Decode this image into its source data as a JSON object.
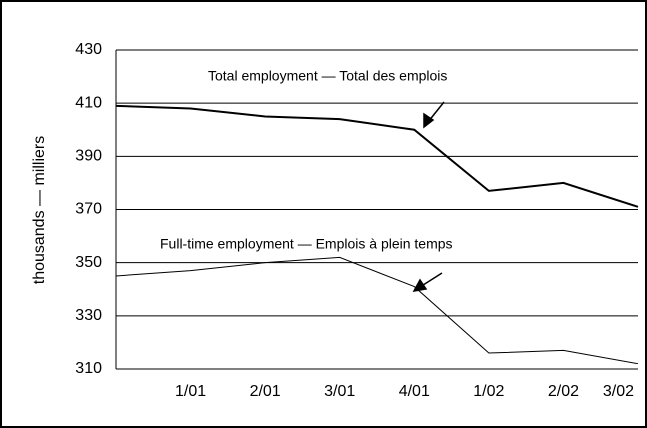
{
  "chart_data": {
    "type": "line",
    "ylabel": "thousands — milliers",
    "categories": [
      null,
      "1/01",
      "2/01",
      "3/01",
      "4/01",
      "1/02",
      "2/02",
      "3/02"
    ],
    "series": [
      {
        "name": "Total employment — Total des emplois",
        "color": "#000000",
        "width": 2,
        "values": [
          409,
          408,
          405,
          404,
          400,
          377,
          380,
          371
        ]
      },
      {
        "name": "Full-time employment — Emplois à plein temps",
        "color": "#000000",
        "width": 1,
        "values": [
          345,
          347,
          350,
          352,
          341,
          316,
          317,
          312
        ]
      }
    ],
    "ylim": [
      310,
      430
    ],
    "yticks": [
      310,
      330,
      350,
      370,
      390,
      410,
      430
    ],
    "grid": true
  }
}
